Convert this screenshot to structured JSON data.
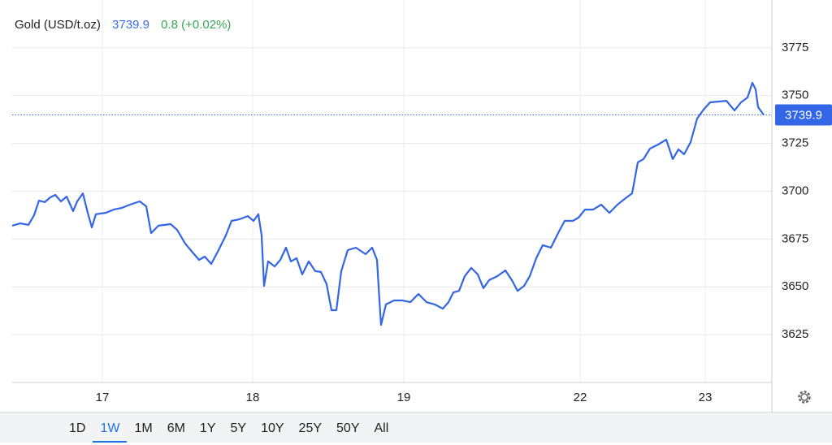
{
  "chart_data": {
    "type": "line",
    "title": "Gold (USD/t.oz)",
    "last_value": 3739.9,
    "change": "0.8 (+0.02%)",
    "x": [
      0,
      2,
      4,
      5.4,
      6.6,
      8,
      9.4,
      10.6,
      12,
      13.4,
      15,
      16,
      17.4,
      18.6,
      19.6,
      20.6,
      23,
      25,
      27,
      29,
      31.4,
      33,
      34.2,
      36,
      39,
      40.6,
      42.6,
      44.6,
      46,
      47.4,
      49,
      50.6,
      52.6,
      54,
      56,
      58,
      59.4,
      60.6,
      61.4,
      62,
      63,
      64.6,
      66,
      67.4,
      68.6,
      70,
      71.4,
      73,
      74.6,
      76,
      77.4,
      78.6,
      79.8,
      81,
      82.6,
      84.6,
      87,
      88.6,
      89.8,
      90.4,
      90.8,
      92,
      94,
      96,
      98,
      100,
      102,
      104,
      106,
      107.4,
      108.6,
      110,
      111.4,
      113,
      114.6,
      116,
      117.4,
      119.4,
      121.4,
      123,
      124.4,
      126,
      127.4,
      129,
      130.6,
      132.6,
      134.6,
      136,
      138,
      139.4,
      141,
      143,
      145,
      147,
      149,
      151,
      152.6,
      154,
      155.4,
      157,
      159,
      161,
      162.6,
      164,
      165.4,
      167,
      168.6,
      170.2,
      171.8,
      173.8,
      175.8,
      177.8,
      179.4,
      181,
      182.2,
      183,
      183.6,
      185
    ],
    "series": [
      {
        "name": "Gold",
        "color": "#3366e6",
        "values": [
          3682.0,
          3683.2,
          3682.4,
          3687.5,
          3695.1,
          3694.3,
          3696.8,
          3698.1,
          3694.7,
          3697.2,
          3689.6,
          3694.7,
          3698.9,
          3688.7,
          3681.1,
          3688.0,
          3688.7,
          3690.4,
          3691.3,
          3693.0,
          3694.7,
          3692.1,
          3678.1,
          3682.0,
          3682.8,
          3679.8,
          3672.6,
          3667.5,
          3664.1,
          3665.8,
          3662.0,
          3668.4,
          3676.9,
          3684.5,
          3685.4,
          3687.0,
          3684.5,
          3688.0,
          3676.9,
          3650.5,
          3663.3,
          3660.7,
          3664.1,
          3670.5,
          3663.3,
          3665.0,
          3656.5,
          3663.3,
          3658.2,
          3657.8,
          3651.4,
          3637.8,
          3637.8,
          3658.2,
          3669.2,
          3670.5,
          3667.1,
          3670.5,
          3664.1,
          3642.9,
          3630.1,
          3640.8,
          3642.9,
          3642.9,
          3642.0,
          3646.3,
          3642.0,
          3640.8,
          3638.6,
          3642.0,
          3647.1,
          3647.9,
          3655.6,
          3659.9,
          3656.5,
          3649.3,
          3653.5,
          3655.6,
          3658.6,
          3653.5,
          3647.9,
          3650.5,
          3655.6,
          3665.0,
          3671.8,
          3670.5,
          3679.0,
          3684.5,
          3684.5,
          3686.2,
          3690.4,
          3690.4,
          3693.0,
          3688.7,
          3693.0,
          3696.4,
          3698.9,
          3715.1,
          3716.8,
          3722.3,
          3724.4,
          3727.0,
          3716.8,
          3721.9,
          3719.3,
          3725.7,
          3738.0,
          3742.7,
          3746.5,
          3746.9,
          3747.3,
          3742.2,
          3746.5,
          3749.0,
          3756.7,
          3753.3,
          3744.0,
          3739.9
        ]
      }
    ],
    "xlim": [
      0,
      187
    ],
    "xticks": [
      {
        "value": 22.2,
        "label": "17"
      },
      {
        "value": 59.2,
        "label": "18"
      },
      {
        "value": 96.4,
        "label": "19"
      },
      {
        "value": 139.8,
        "label": "22"
      },
      {
        "value": 170.6,
        "label": "23"
      }
    ],
    "ylim": [
      3600,
      3800
    ],
    "yticks": [
      3625,
      3650,
      3675,
      3700,
      3725,
      3750,
      3775
    ],
    "grid": true,
    "ranges": [
      "1D",
      "1W",
      "1M",
      "6M",
      "1Y",
      "5Y",
      "10Y",
      "25Y",
      "50Y",
      "All"
    ]
  }
}
